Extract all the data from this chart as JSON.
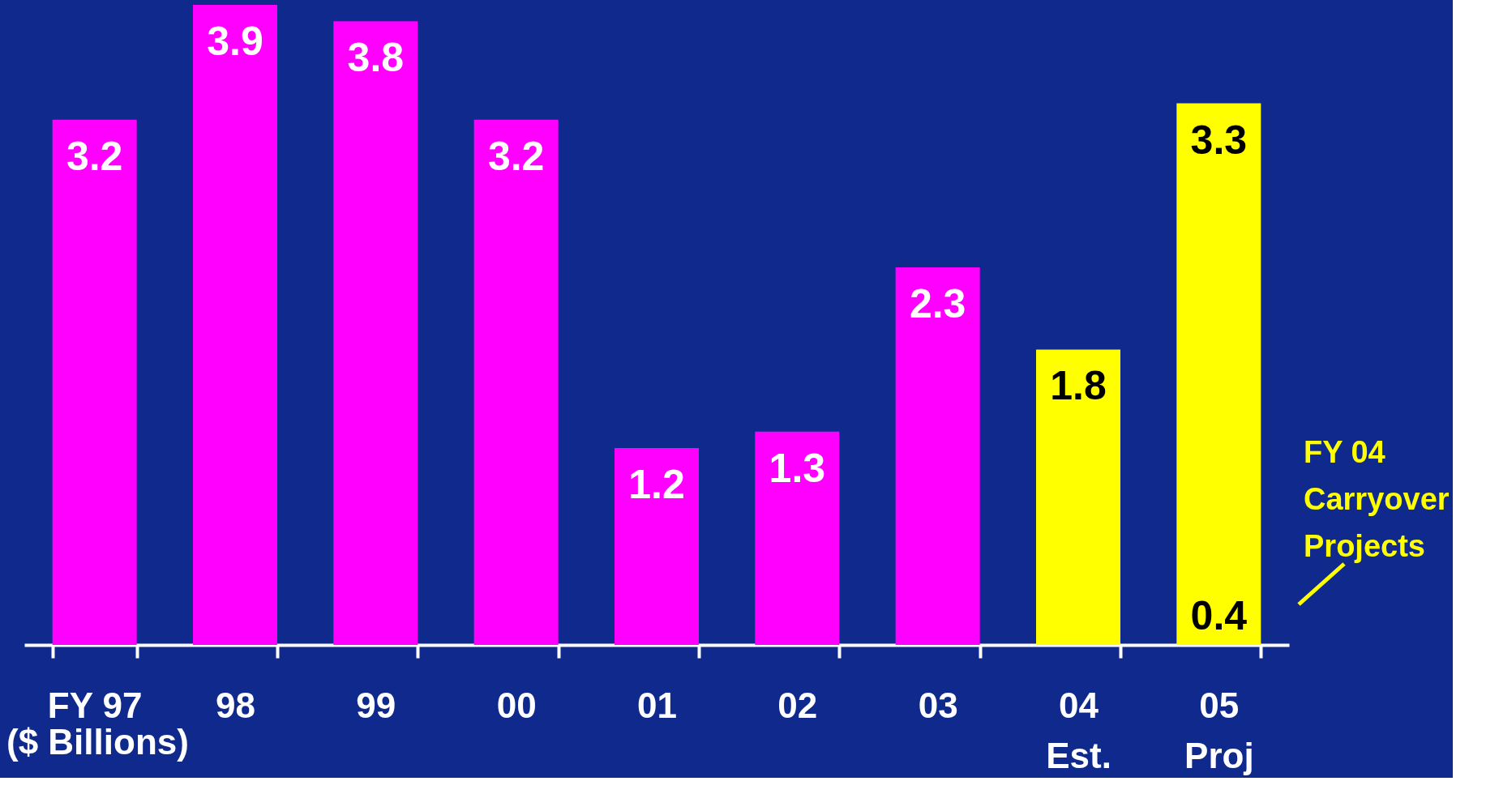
{
  "chart_data": {
    "type": "bar",
    "stacked": true,
    "categories": [
      "FY 97",
      "98",
      "99",
      "00",
      "01",
      "02",
      "03",
      "04\nEst.",
      "05\nProj"
    ],
    "series": [
      {
        "colors": [
          "#ff00ff",
          "#ff00ff",
          "#ff00ff",
          "#ff00ff",
          "#ff00ff",
          "#ff00ff",
          "#ff00ff",
          "#ffff00",
          "#ffff00"
        ],
        "values": [
          3.2,
          3.9,
          3.8,
          3.2,
          1.2,
          1.3,
          2.3,
          1.8,
          0.4
        ],
        "value_labels": [
          "3.2",
          "3.9",
          "3.8",
          "3.2",
          "1.2",
          "1.3",
          "2.3",
          "1.8",
          "0.4"
        ]
      },
      {
        "colors": [
          null,
          null,
          null,
          null,
          null,
          null,
          null,
          null,
          "#ffff00"
        ],
        "values": [
          null,
          null,
          null,
          null,
          null,
          null,
          null,
          null,
          2.9
        ]
      }
    ],
    "totals": [
      null,
      null,
      null,
      null,
      null,
      null,
      null,
      null,
      "3.3"
    ],
    "annotations": [
      "($ Billions)",
      "FY 04\nCarryover\nProjects"
    ],
    "tick_labels": "x",
    "grid": false
  }
}
